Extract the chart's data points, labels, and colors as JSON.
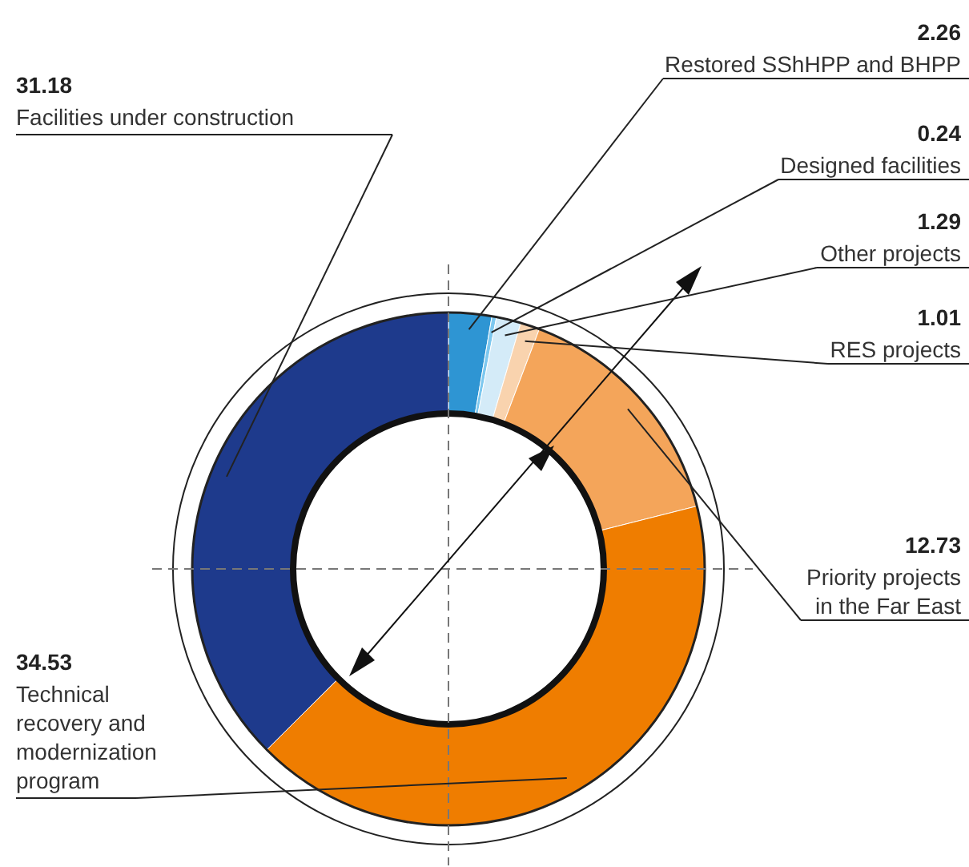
{
  "chart_data": {
    "type": "donut",
    "categories": [
      "Restored SShHPP and BHPP",
      "Designed facilities",
      "Other projects",
      "RES projects",
      "Priority projects in the Far East",
      "Technical recovery and modernization program",
      "Facilities under construction"
    ],
    "values": [
      2.26,
      0.24,
      1.29,
      1.01,
      12.73,
      34.53,
      31.18
    ],
    "colors": [
      "#2e95d3",
      "#7dc8ef",
      "#d4ebf8",
      "#f9d3ae",
      "#f4a55a",
      "#ef7d00",
      "#1e3a8c"
    ],
    "data_labels": true
  }
}
